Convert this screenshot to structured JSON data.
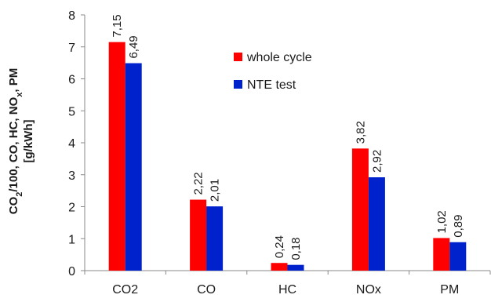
{
  "chart_data": {
    "type": "bar",
    "categories": [
      "CO2",
      "CO",
      "HC",
      "NOx",
      "PM"
    ],
    "series": [
      {
        "name": "whole cycle",
        "color": "#ff0000",
        "values": [
          7.15,
          2.22,
          0.24,
          3.82,
          1.02
        ],
        "labels": [
          "7,15",
          "2,22",
          "0,24",
          "3,82",
          "1,02"
        ]
      },
      {
        "name": "NTE test",
        "color": "#0022cc",
        "values": [
          6.49,
          2.01,
          0.18,
          2.92,
          0.89
        ],
        "labels": [
          "6,49",
          "2,01",
          "0,18",
          "2,92",
          "0,89"
        ]
      }
    ],
    "ylim": [
      0,
      8
    ],
    "yticks": [
      0,
      1,
      2,
      3,
      4,
      5,
      6,
      7,
      8
    ],
    "ylabel_line1": "CO2/100, CO, HC, NOx, PM",
    "ylabel_line2": "[g/kWh]",
    "xlabel": "",
    "title": "",
    "legend_position": "top-right",
    "grid": false
  }
}
